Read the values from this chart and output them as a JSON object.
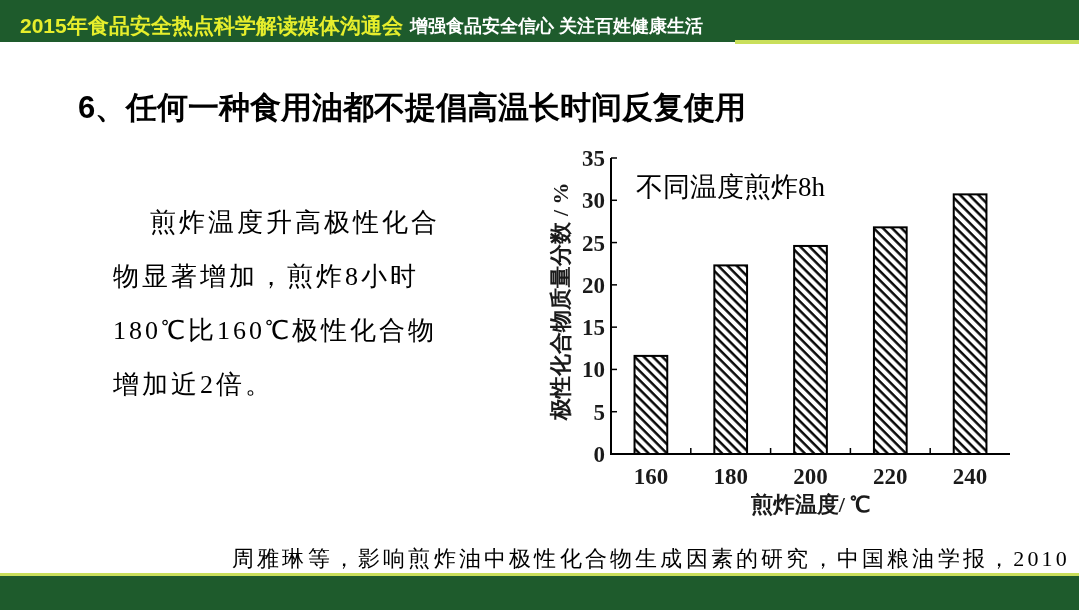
{
  "chart_data": {
    "type": "bar",
    "title": "6、任何一种食用油都不提倡高温长时间反复使用",
    "xlabel": "煎炸温度/ ℃",
    "ylabel": "极性化合物质量分数 / %",
    "categories": [
      "160",
      "180",
      "200",
      "220",
      "240"
    ],
    "values": [
      11.6,
      22.3,
      24.6,
      26.8,
      30.7
    ],
    "color": "#000000",
    "ylim": [
      0,
      35
    ],
    "yticks": [
      0,
      5,
      10,
      15,
      20,
      25,
      30,
      35
    ],
    "annotations": [
      "2015年食品安全热点科学解读媒体沟通会",
      "增强食品安全信心 关注百姓健康生活",
      "不同温度煎炸8h",
      "煎炸温度升高极性化合物显著增加，煎炸8小时180℃比160℃极性化合物增加近2倍。",
      "周雅琳等，影响煎炸油中极性化合物生成因素的研究，中国粮油学报，2010"
    ]
  }
}
